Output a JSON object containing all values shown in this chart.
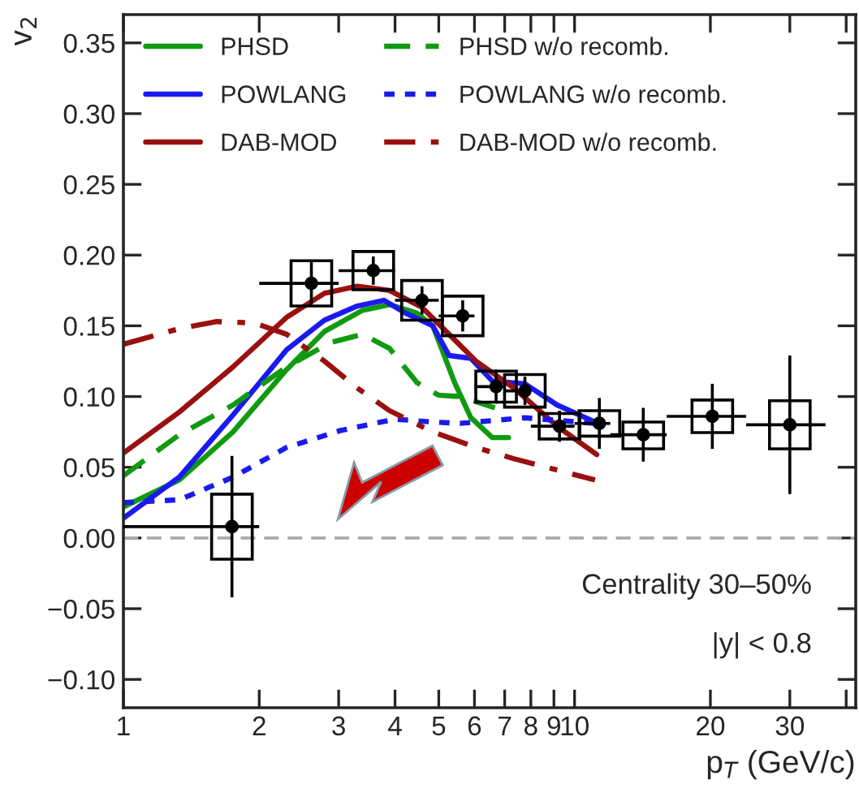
{
  "chart_data": {
    "type": "line",
    "xlabel": "p$_{T}$ (GeV/c)",
    "ylabel": "v$_{2}$",
    "log": "x",
    "xlim": [
      1,
      42
    ],
    "xticks": [
      1,
      2,
      3,
      4,
      5,
      6,
      7,
      8,
      9,
      10,
      20,
      30,
      {
        "value": 40,
        "label": null
      }
    ],
    "ylim": [
      -0.12,
      0.37
    ],
    "yticks": [
      {
        "value": -0.1,
        "label": "−0.10"
      },
      {
        "value": -0.05,
        "label": "−0.05"
      },
      {
        "value": 0,
        "label": "0.00"
      },
      {
        "value": 0.05,
        "label": "0.05"
      },
      {
        "value": 0.1,
        "label": "0.10"
      },
      {
        "value": 0.15,
        "label": "0.15"
      },
      {
        "value": 0.2,
        "label": "0.20"
      },
      {
        "value": 0.25,
        "label": "0.25"
      },
      {
        "value": 0.3,
        "label": "0.30"
      },
      {
        "value": 0.35,
        "label": "0.35"
      }
    ],
    "grid": false,
    "legend": "top left",
    "ref_lines": [
      {
        "axis": "y",
        "value": 0,
        "color": "#aaaaaa",
        "line_style": "dashed"
      }
    ],
    "annotations": [
      "Centrality 30–50%",
      "|y| < 0.8"
    ],
    "series": [
      {
        "name": "PHSD",
        "color": "#109a10",
        "line_style": "solid",
        "x": [
          1.0,
          1.33,
          1.75,
          2.3,
          2.79,
          3.39,
          3.89,
          4.47,
          4.85,
          5.42,
          5.89,
          6.57,
          7.14
        ],
        "values": [
          0.022,
          0.041,
          0.075,
          0.119,
          0.146,
          0.161,
          0.165,
          0.159,
          0.15,
          0.11,
          0.085,
          0.071,
          0.071
        ]
      },
      {
        "name": "POWLANG",
        "color": "#1a1aee",
        "line_style": "solid",
        "x": [
          1.0,
          1.33,
          1.75,
          2.3,
          2.79,
          3.3,
          3.78,
          4.22,
          4.85,
          5.27,
          5.89,
          6.57,
          7.76,
          9.15,
          11.1
        ],
        "values": [
          0.014,
          0.043,
          0.087,
          0.133,
          0.154,
          0.164,
          0.168,
          0.159,
          0.15,
          0.129,
          0.127,
          0.111,
          0.109,
          0.094,
          0.082
        ]
      },
      {
        "name": "DAB-MOD",
        "color": "#9a1010",
        "line_style": "solid",
        "x": [
          1.0,
          1.33,
          1.75,
          2.3,
          2.79,
          3.3,
          3.89,
          4.59,
          5.27,
          6.05,
          7.34,
          9.15,
          11.2
        ],
        "values": [
          0.06,
          0.089,
          0.121,
          0.156,
          0.173,
          0.178,
          0.175,
          0.163,
          0.144,
          0.125,
          0.106,
          0.079,
          0.059
        ]
      },
      {
        "name": "PHSD w/o recomb.",
        "color": "#109a10",
        "line_style": "dashed",
        "x": [
          1.0,
          1.33,
          1.75,
          2.3,
          2.87,
          3.39,
          3.89,
          4.47,
          4.99,
          5.57,
          6.66
        ],
        "values": [
          0.044,
          0.073,
          0.094,
          0.121,
          0.138,
          0.144,
          0.134,
          0.11,
          0.101,
          0.1,
          0.092
        ]
      },
      {
        "name": "POWLANG w/o recomb.",
        "color": "#1a1aee",
        "line_style": "dotted",
        "x": [
          1.0,
          1.33,
          1.75,
          2.3,
          3.03,
          4.0,
          4.85,
          5.57,
          7.76,
          11.1
        ],
        "values": [
          0.025,
          0.027,
          0.043,
          0.064,
          0.076,
          0.084,
          0.082,
          0.081,
          0.085,
          0.081
        ]
      },
      {
        "name": "DAB-MOD w/o recomb.",
        "color": "#9a1010",
        "line_style": "dashdot",
        "x": [
          1.0,
          1.33,
          1.61,
          1.95,
          2.3,
          2.79,
          3.3,
          3.89,
          4.85,
          6.05,
          7.34,
          11.1
        ],
        "values": [
          0.137,
          0.148,
          0.153,
          0.152,
          0.144,
          0.125,
          0.106,
          0.09,
          0.075,
          0.064,
          0.056,
          0.041
        ]
      },
      {
        "type": "bar",
        "color": "#000000",
        "x": [
          1.74,
          2.61,
          3.58,
          4.59,
          5.65,
          6.7,
          7.76,
          9.26,
          11.35,
          14.2,
          20.2,
          30.0
        ],
        "base": [
          -0.015,
          0.164,
          0.1755,
          0.154,
          0.143,
          0.096,
          0.0925,
          0.07,
          0.072,
          0.063,
          0.0745,
          0.063
        ],
        "values": [
          0.046,
          0.032,
          0.027,
          0.028,
          0.028,
          0.022,
          0.023,
          0.018,
          0.018,
          0.019,
          0.023,
          0.034
        ]
      },
      {
        "type": "scatter",
        "color": "#000000",
        "marker": "circle",
        "x": [
          1.74,
          2.61,
          3.58,
          4.59,
          5.65,
          6.7,
          7.76,
          9.26,
          11.35,
          14.2,
          20.2,
          30.0
        ],
        "values": [
          0.008,
          0.18,
          0.189,
          0.168,
          0.157,
          0.107,
          0.104,
          0.079,
          0.081,
          0.073,
          0.086,
          0.08
        ],
        "errors": [
          0.05,
          0.015,
          0.01,
          0.01,
          0.011,
          0.012,
          0.01,
          0.011,
          0.018,
          0.019,
          0.023,
          0.049
        ],
        "xerrors": [
          [
            1,
            2
          ],
          [
            2,
            3
          ],
          [
            3,
            4
          ],
          [
            4,
            5
          ],
          [
            5,
            6
          ],
          [
            6,
            7
          ],
          [
            7,
            8
          ],
          [
            8,
            10
          ],
          [
            10,
            12
          ],
          [
            12,
            16
          ],
          [
            16,
            24
          ],
          [
            24,
            36
          ]
        ]
      }
    ]
  }
}
